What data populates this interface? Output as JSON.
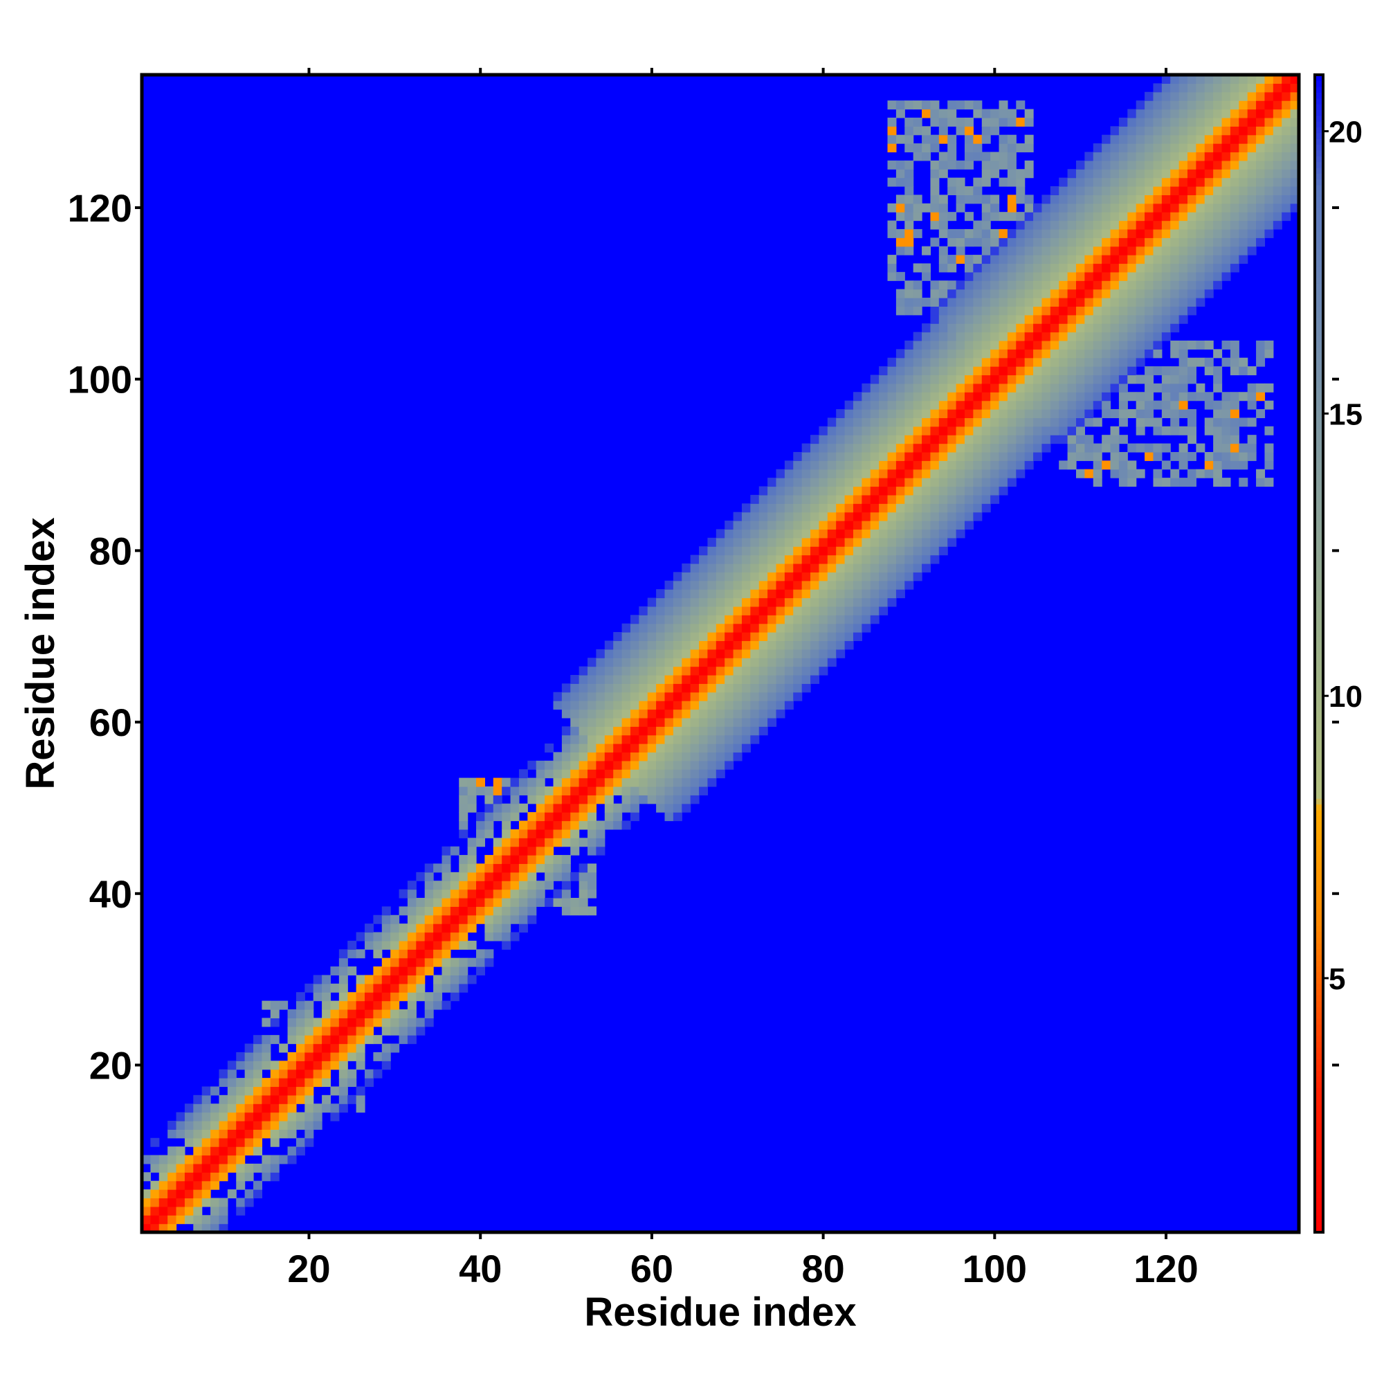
{
  "chart_data": {
    "type": "heatmap",
    "title": "",
    "xlabel": "Residue index",
    "ylabel": "Residue index",
    "n": 135,
    "xlim": [
      1,
      135
    ],
    "ylim": [
      1,
      135
    ],
    "x_ticks": [
      20,
      40,
      60,
      80,
      100,
      120
    ],
    "y_ticks": [
      20,
      40,
      60,
      80,
      100,
      120
    ],
    "x_tick_labels": [
      "20",
      "40",
      "60",
      "80",
      "100",
      "120"
    ],
    "y_tick_labels": [
      "20",
      "40",
      "60",
      "80",
      "100",
      "120"
    ],
    "colorbar": {
      "range": [
        0.5,
        21
      ],
      "ticks": [
        5,
        10,
        15,
        20
      ],
      "tick_labels": [
        "5",
        "10",
        "15",
        "20"
      ],
      "stops": [
        {
          "value": 0.5,
          "color": "#ff0000"
        },
        {
          "value": 3.0,
          "color": "#ff2000"
        },
        {
          "value": 6.0,
          "color": "#ff8800"
        },
        {
          "value": 8.0,
          "color": "#ffaa00"
        },
        {
          "value": 8.2,
          "color": "#b4c080"
        },
        {
          "value": 11.0,
          "color": "#9bb08a"
        },
        {
          "value": 15.0,
          "color": "#7e98a6"
        },
        {
          "value": 19.0,
          "color": "#5a78c0"
        },
        {
          "value": 21.0,
          "color": "#0000ff"
        }
      ],
      "background_color": "#0000ff"
    },
    "diagonal_band": {
      "description_value": "distance grows with |i - j|",
      "segments": [
        {
          "from": 1,
          "to": 55,
          "half_width": 9
        },
        {
          "from": 55,
          "to": 100,
          "half_width": 14
        },
        {
          "from": 100,
          "to": 135,
          "half_width": 15
        }
      ]
    },
    "contact_clusters": [
      {
        "i_range": [
          2,
          8
        ],
        "j_range": [
          2,
          8
        ],
        "value": 14
      },
      {
        "i_range": [
          15,
          27
        ],
        "j_range": [
          15,
          27
        ],
        "value": 14
      },
      {
        "i_range": [
          28,
          36
        ],
        "j_range": [
          28,
          36
        ],
        "value": 14
      },
      {
        "i_range": [
          38,
          53
        ],
        "j_range": [
          38,
          53
        ],
        "value": 14
      },
      {
        "i_range": [
          57,
          71
        ],
        "j_range": [
          57,
          71
        ],
        "value": 15
      },
      {
        "i_range": [
          88,
          104
        ],
        "j_range": [
          112,
          132
        ],
        "value": 15
      },
      {
        "i_range": [
          108,
          127
        ],
        "j_range": [
          89,
          104
        ],
        "value": 15
      }
    ],
    "legend": "colorbar right"
  }
}
